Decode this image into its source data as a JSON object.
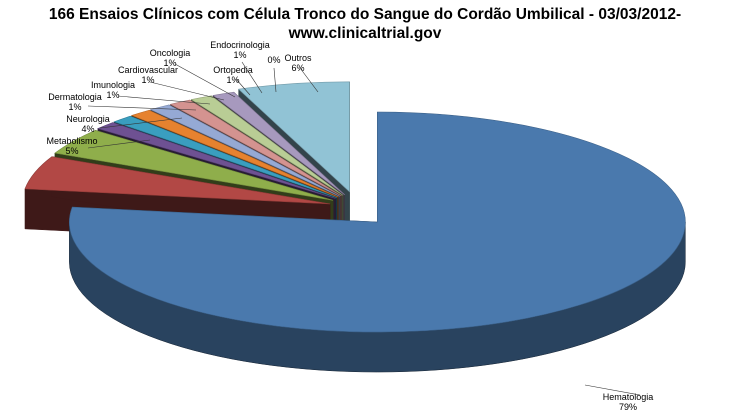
{
  "chart_data": {
    "type": "pie",
    "title": "166 Ensaios Clínicos com Célula Tronco do Sangue do Cordão Umbilical - 03/03/2012-",
    "subtitle": "www.clinicaltrial.gov",
    "style": "3d-exploded",
    "slices": [
      {
        "name": "Hematologia",
        "value": 79,
        "label": "79%",
        "color": "#4a79ad"
      },
      {
        "name": "Metabolismo",
        "value": 5,
        "label": "5%",
        "color": "#b24845"
      },
      {
        "name": "Neurologia",
        "value": 4,
        "label": "4%",
        "color": "#8fae4b"
      },
      {
        "name": "Dermatologia",
        "value": 1,
        "label": "1%",
        "color": "#6e5192"
      },
      {
        "name": "Imunologia",
        "value": 1,
        "label": "1%",
        "color": "#3a9ebf"
      },
      {
        "name": "Cardiovascular",
        "value": 1,
        "label": "1%",
        "color": "#e6822f"
      },
      {
        "name": "Oncologia",
        "value": 1,
        "label": "1%",
        "color": "#95a9d4"
      },
      {
        "name": "Ortopedia",
        "value": 1,
        "label": "1%",
        "color": "#d49390"
      },
      {
        "name": "Endocrinologia",
        "value": 1,
        "label": "1%",
        "color": "#b9cd95"
      },
      {
        "name": "",
        "value": 0,
        "label": "0%",
        "color": "#a799be"
      },
      {
        "name": "Outros",
        "value": 6,
        "label": "6%",
        "color": "#91c3d5"
      }
    ]
  }
}
